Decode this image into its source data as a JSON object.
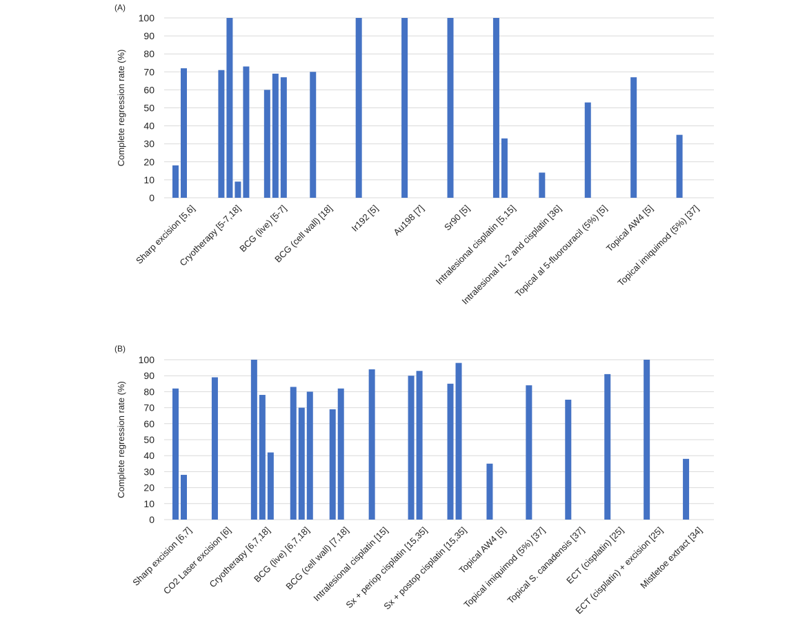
{
  "chart_data": [
    {
      "type": "bar",
      "panel_label": "(A)",
      "title": "",
      "xlabel": "",
      "ylabel": "Complete regression rate (%)",
      "ylim": [
        0,
        100
      ],
      "yticks": [
        0,
        10,
        20,
        30,
        40,
        50,
        60,
        70,
        80,
        90,
        100
      ],
      "grid": true,
      "legend": "none",
      "bar_color": "#4472c4",
      "categories": [
        {
          "label": "Sharp excision [5,6]",
          "values": [
            18,
            72
          ]
        },
        {
          "label": "Cryotherapy [5-7,18]",
          "values": [
            71,
            100,
            9,
            73
          ]
        },
        {
          "label": "BCG (live) [5-7]",
          "values": [
            60,
            69,
            67
          ]
        },
        {
          "label": "BCG (cell wall) [18]",
          "values": [
            70
          ]
        },
        {
          "label": "Ir192 [5]",
          "values": [
            100
          ]
        },
        {
          "label": "Au198 [7]",
          "values": [
            100
          ]
        },
        {
          "label": "Sr90 [5]",
          "values": [
            100
          ]
        },
        {
          "label": "Intralesional cisplatin [5,15]",
          "values": [
            100,
            33
          ]
        },
        {
          "label": "Intralesional IL-2 and cisplatin [36]",
          "values": [
            14
          ]
        },
        {
          "label": "Topical al 5-fluorouracil (5%) [5]",
          "values": [
            53
          ]
        },
        {
          "label": "Topical AW4 [5]",
          "values": [
            67
          ]
        },
        {
          "label": "Topical imiquimod (5%) [37]",
          "values": [
            35
          ]
        }
      ]
    },
    {
      "type": "bar",
      "panel_label": "(B)",
      "title": "",
      "xlabel": "",
      "ylabel": "Complete regression rate (%)",
      "ylim": [
        0,
        100
      ],
      "yticks": [
        0,
        10,
        20,
        30,
        40,
        50,
        60,
        70,
        80,
        90,
        100
      ],
      "grid": true,
      "legend": "none",
      "bar_color": "#4472c4",
      "categories": [
        {
          "label": "Sharp excision [6,7]",
          "values": [
            82,
            28
          ]
        },
        {
          "label": "CO2 Laser excision [6]",
          "values": [
            89
          ]
        },
        {
          "label": "Cryotherapy [6,7,18]",
          "values": [
            100,
            78,
            42
          ]
        },
        {
          "label": "BCG (live) [6,7,18]",
          "values": [
            83,
            70,
            80
          ]
        },
        {
          "label": "BCG (cell wall) [7,18]",
          "values": [
            69,
            82
          ]
        },
        {
          "label": "Intralesional cisplatin [15]",
          "values": [
            94
          ]
        },
        {
          "label": "Sx + periop cisplatin [15,35]",
          "values": [
            90,
            93
          ]
        },
        {
          "label": "Sx + postop cisplatin [15,35]",
          "values": [
            85,
            98
          ]
        },
        {
          "label": "Topical AW4 [5]",
          "values": [
            35
          ]
        },
        {
          "label": "Topical imiquimod (5%) [37]",
          "values": [
            84
          ]
        },
        {
          "label": "Topical S. canadensis [37]",
          "values": [
            75
          ]
        },
        {
          "label": "ECT (cisplatin) [25]",
          "values": [
            91
          ]
        },
        {
          "label": "ECT (cisplatin) + excision [25]",
          "values": [
            100
          ]
        },
        {
          "label": "Mistletoe extract [34]",
          "values": [
            38
          ]
        }
      ]
    }
  ]
}
